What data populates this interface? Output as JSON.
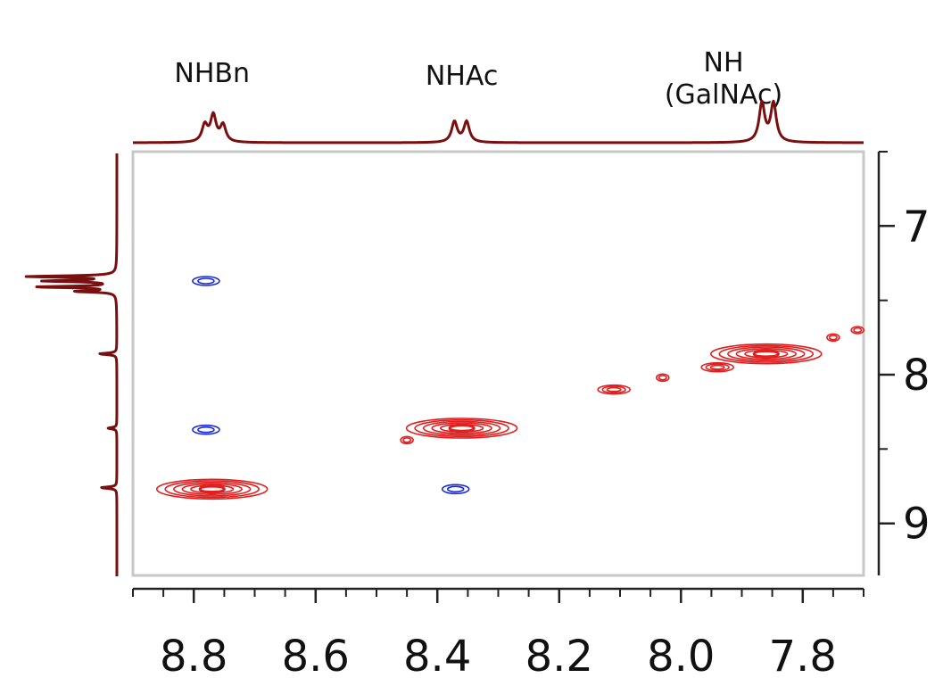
{
  "chart_data": {
    "type": "2D NMR contour (TOCSY)",
    "x_axis": {
      "range": [
        8.9,
        7.7
      ],
      "reversed": true,
      "ticks": [
        8.8,
        8.6,
        8.4,
        8.2,
        8.0,
        7.8
      ],
      "tick_labels": [
        "8.8",
        "8.6",
        "8.4",
        "8.2",
        "8.0",
        "7.8"
      ]
    },
    "y_axis": {
      "range": [
        6.5,
        9.35
      ],
      "reversed": true,
      "ticks": [
        7,
        8,
        9
      ],
      "tick_labels": [
        "7",
        "8",
        "9"
      ],
      "position": "right"
    },
    "peak_labels": [
      {
        "lines": [
          "NHBn"
        ],
        "ppm": 8.77
      },
      {
        "lines": [
          "NHAc"
        ],
        "ppm": 8.36
      },
      {
        "lines": [
          "NH",
          "(GalNAc)"
        ],
        "ppm": 7.93
      }
    ],
    "top_projection_peaks": [
      {
        "ppm": 8.782,
        "height": 0.27
      },
      {
        "ppm": 8.768,
        "height": 0.42
      },
      {
        "ppm": 8.752,
        "height": 0.27
      },
      {
        "ppm": 8.372,
        "height": 0.33
      },
      {
        "ppm": 8.352,
        "height": 0.33
      },
      {
        "ppm": 7.867,
        "height": 0.62
      },
      {
        "ppm": 7.848,
        "height": 0.62
      }
    ],
    "left_projection_peaks": [
      {
        "ppm": 7.34,
        "height": 1.0
      },
      {
        "ppm": 7.37,
        "height": 0.8
      },
      {
        "ppm": 7.41,
        "height": 0.9
      },
      {
        "ppm": 7.44,
        "height": 0.45
      },
      {
        "ppm": 7.86,
        "height": 0.2
      },
      {
        "ppm": 8.36,
        "height": 0.1
      },
      {
        "ppm": 8.76,
        "height": 0.18
      }
    ],
    "cross_peaks": [
      {
        "x": 8.77,
        "y": 8.77,
        "color": "red",
        "size": "large"
      },
      {
        "x": 8.36,
        "y": 8.36,
        "color": "red",
        "size": "large"
      },
      {
        "x": 7.86,
        "y": 7.86,
        "color": "red",
        "size": "large"
      },
      {
        "x": 8.45,
        "y": 8.44,
        "color": "red",
        "size": "small"
      },
      {
        "x": 8.11,
        "y": 8.1,
        "color": "red",
        "size": "medium"
      },
      {
        "x": 8.03,
        "y": 8.02,
        "color": "red",
        "size": "small"
      },
      {
        "x": 7.94,
        "y": 7.95,
        "color": "red",
        "size": "medium"
      },
      {
        "x": 7.75,
        "y": 7.75,
        "color": "red",
        "size": "small"
      },
      {
        "x": 7.71,
        "y": 7.7,
        "color": "red",
        "size": "small"
      },
      {
        "x": 8.78,
        "y": 7.37,
        "color": "blue",
        "size": "small"
      },
      {
        "x": 8.78,
        "y": 8.37,
        "color": "blue",
        "size": "small"
      },
      {
        "x": 8.37,
        "y": 8.77,
        "color": "blue",
        "size": "small"
      }
    ],
    "colors": {
      "projection": "#7a0f0f",
      "positive_contour": "#e02020",
      "negative_contour": "#1a2ad8",
      "axis": "#222222",
      "frame": "#c8c8c8"
    },
    "grid": false
  }
}
